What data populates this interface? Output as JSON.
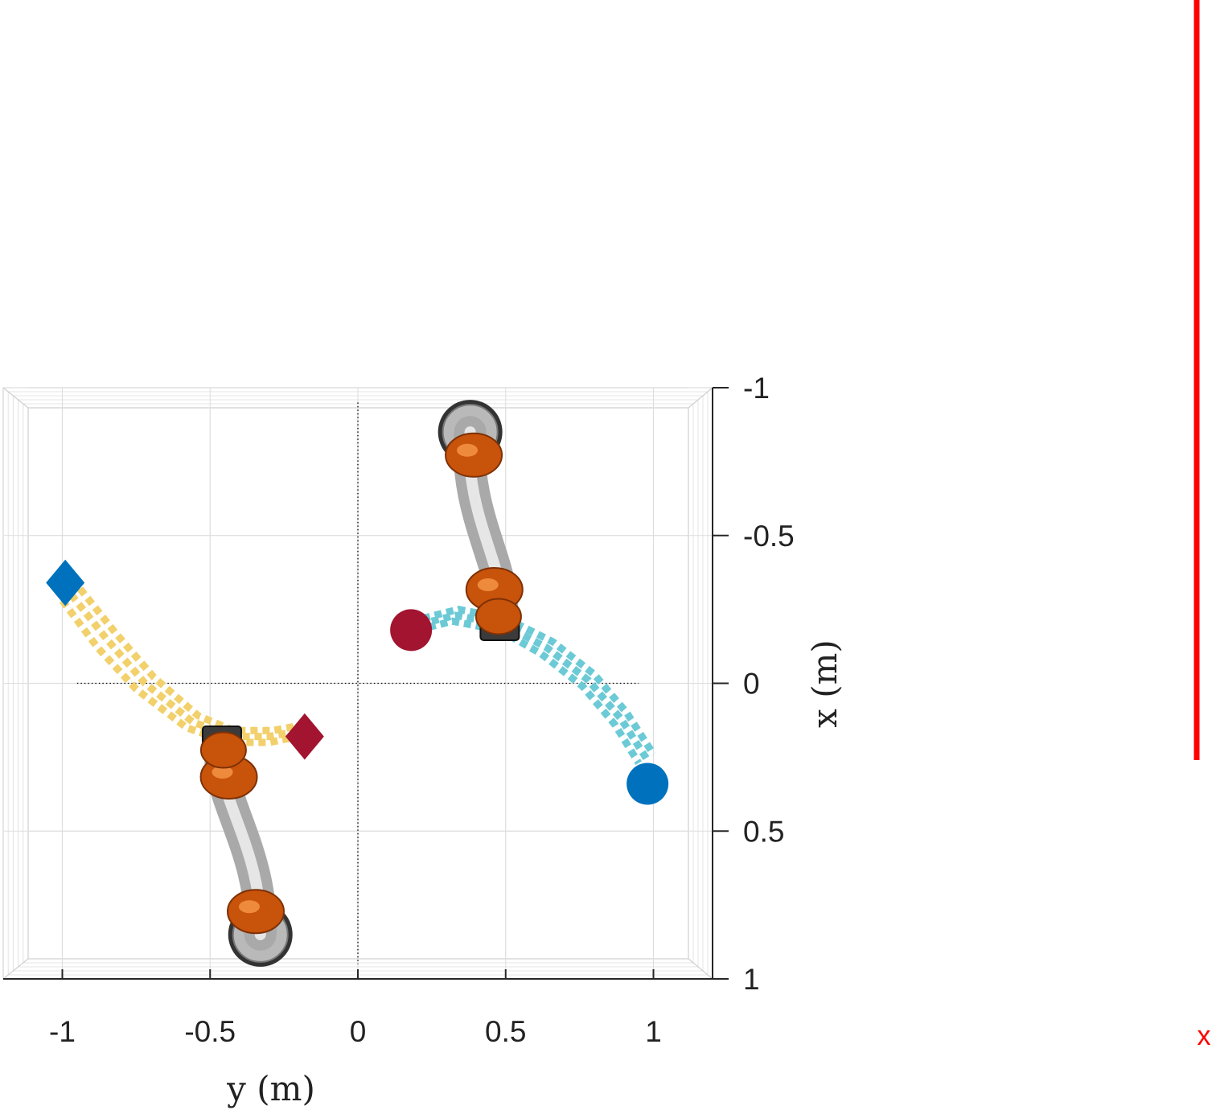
{
  "chart_data": {
    "type": "scatter",
    "title": "",
    "xlabel": "y (m)",
    "ylabel": "x (m)",
    "x_axis": {
      "quantity": "y",
      "range": [
        -1.2,
        1.2
      ],
      "ticks": [
        -1,
        -0.5,
        0,
        0.5,
        1
      ],
      "tick_labels": [
        "-1",
        "-0.5",
        "0",
        "0.5",
        "1"
      ]
    },
    "y_axis": {
      "quantity": "x",
      "range": [
        -1,
        1
      ],
      "reversed": true,
      "location": "right",
      "ticks": [
        -1,
        -0.5,
        0,
        0.5,
        1
      ],
      "tick_labels": [
        "-1",
        "-0.5",
        "0",
        "0.5",
        "1"
      ]
    },
    "grid": true,
    "reference_lines": {
      "style": "dotted",
      "color": "#000000",
      "horizontal_at_x": 0,
      "horizontal_y_range": [
        -0.95,
        0.95
      ],
      "vertical_at_y": 0,
      "vertical_x_range": [
        -0.95,
        0.95
      ]
    },
    "trajectories": [
      {
        "color": "#f2d06b",
        "style": "dotted",
        "paths": [
          [
            [
              -1.0,
              -0.28
            ],
            [
              -0.88,
              -0.12
            ],
            [
              -0.75,
              0.02
            ],
            [
              -0.58,
              0.15
            ],
            [
              -0.44,
              0.2
            ],
            [
              -0.3,
              0.2
            ],
            [
              -0.2,
              0.18
            ]
          ],
          [
            [
              -0.97,
              -0.3
            ],
            [
              -0.85,
              -0.15
            ],
            [
              -0.72,
              0.0
            ],
            [
              -0.56,
              0.13
            ],
            [
              -0.43,
              0.18
            ],
            [
              -0.3,
              0.18
            ],
            [
              -0.19,
              0.16
            ]
          ],
          [
            [
              -0.94,
              -0.32
            ],
            [
              -0.82,
              -0.17
            ],
            [
              -0.69,
              -0.02
            ],
            [
              -0.54,
              0.11
            ],
            [
              -0.42,
              0.16
            ],
            [
              -0.29,
              0.16
            ],
            [
              -0.18,
              0.14
            ]
          ]
        ]
      },
      {
        "color": "#6ccad6",
        "style": "dotted",
        "paths": [
          [
            [
              0.2,
              -0.18
            ],
            [
              0.32,
              -0.21
            ],
            [
              0.48,
              -0.18
            ],
            [
              0.62,
              -0.1
            ],
            [
              0.76,
              0.01
            ],
            [
              0.87,
              0.14
            ],
            [
              0.95,
              0.27
            ]
          ],
          [
            [
              0.21,
              -0.2
            ],
            [
              0.33,
              -0.23
            ],
            [
              0.49,
              -0.2
            ],
            [
              0.64,
              -0.12
            ],
            [
              0.78,
              -0.01
            ],
            [
              0.89,
              0.12
            ],
            [
              0.98,
              0.26
            ]
          ],
          [
            [
              0.22,
              -0.22
            ],
            [
              0.34,
              -0.25
            ],
            [
              0.5,
              -0.22
            ],
            [
              0.66,
              -0.14
            ],
            [
              0.8,
              -0.03
            ],
            [
              0.91,
              0.1
            ],
            [
              1.0,
              0.24
            ]
          ]
        ]
      }
    ],
    "markers": [
      {
        "shape": "diamond",
        "color": "#0072bd",
        "y": -0.99,
        "x": -0.34
      },
      {
        "shape": "diamond",
        "color": "#a2142f",
        "y": -0.18,
        "x": 0.18
      },
      {
        "shape": "circle",
        "color": "#a2142f",
        "y": 0.18,
        "x": -0.18
      },
      {
        "shape": "circle",
        "color": "#0072bd",
        "y": 0.98,
        "x": 0.34
      }
    ],
    "robots": [
      {
        "base": {
          "y": -0.33,
          "x": 0.85
        },
        "end_effector": {
          "y": -0.46,
          "x": 0.2
        }
      },
      {
        "base": {
          "y": 0.38,
          "x": -0.85
        },
        "end_effector": {
          "y": 0.48,
          "x": -0.2
        }
      }
    ],
    "side_indicator": {
      "color": "#ff0000",
      "label": "x"
    }
  }
}
